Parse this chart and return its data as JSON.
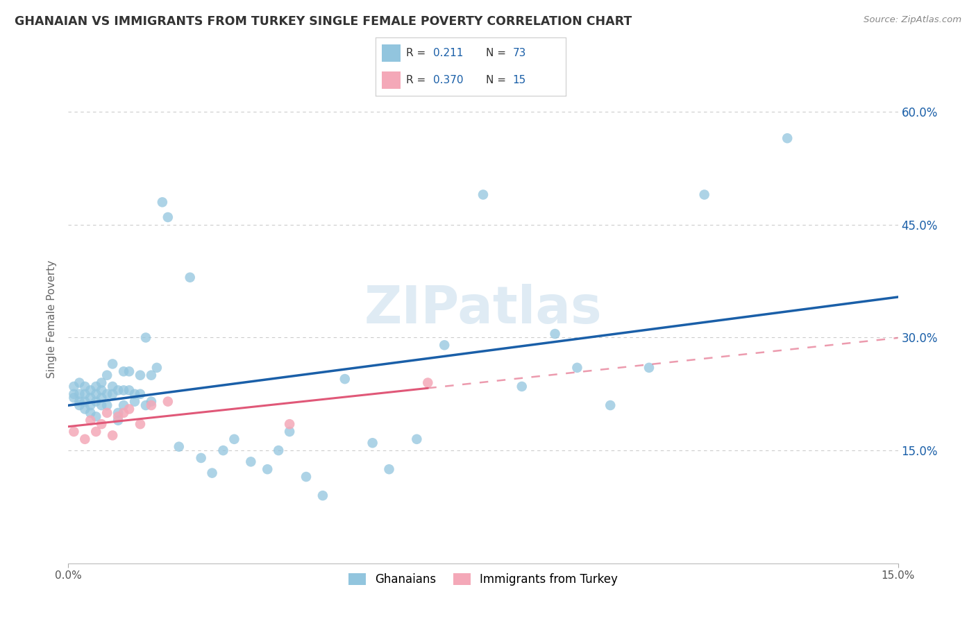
{
  "title": "GHANAIAN VS IMMIGRANTS FROM TURKEY SINGLE FEMALE POVERTY CORRELATION CHART",
  "source": "Source: ZipAtlas.com",
  "ylabel": "Single Female Poverty",
  "watermark": "ZIPatlas",
  "xlim": [
    0.0,
    0.15
  ],
  "ylim": [
    0.0,
    0.65
  ],
  "ytick_positions": [
    0.15,
    0.3,
    0.45,
    0.6
  ],
  "ytick_labels": [
    "15.0%",
    "30.0%",
    "45.0%",
    "60.0%"
  ],
  "blue_color": "#92c5de",
  "pink_color": "#f4a8b8",
  "line_blue": "#1a5fa8",
  "line_pink": "#e05878",
  "background_color": "#ffffff",
  "grid_color": "#cccccc",
  "title_color": "#333333",
  "value_color": "#1a5fa8",
  "ghanaian_x": [
    0.001,
    0.001,
    0.001,
    0.002,
    0.002,
    0.002,
    0.002,
    0.003,
    0.003,
    0.003,
    0.003,
    0.004,
    0.004,
    0.004,
    0.004,
    0.005,
    0.005,
    0.005,
    0.005,
    0.006,
    0.006,
    0.006,
    0.006,
    0.007,
    0.007,
    0.007,
    0.008,
    0.008,
    0.008,
    0.009,
    0.009,
    0.009,
    0.01,
    0.01,
    0.01,
    0.011,
    0.011,
    0.012,
    0.012,
    0.013,
    0.013,
    0.014,
    0.014,
    0.015,
    0.015,
    0.016,
    0.017,
    0.018,
    0.02,
    0.022,
    0.024,
    0.026,
    0.028,
    0.03,
    0.033,
    0.036,
    0.038,
    0.04,
    0.043,
    0.046,
    0.05,
    0.055,
    0.058,
    0.063,
    0.068,
    0.075,
    0.082,
    0.088,
    0.092,
    0.098,
    0.105,
    0.115,
    0.13
  ],
  "ghanaian_y": [
    0.225,
    0.235,
    0.22,
    0.24,
    0.225,
    0.215,
    0.21,
    0.235,
    0.225,
    0.215,
    0.205,
    0.23,
    0.22,
    0.21,
    0.2,
    0.235,
    0.225,
    0.215,
    0.195,
    0.23,
    0.22,
    0.21,
    0.24,
    0.25,
    0.225,
    0.21,
    0.265,
    0.235,
    0.225,
    0.23,
    0.2,
    0.19,
    0.255,
    0.23,
    0.21,
    0.255,
    0.23,
    0.225,
    0.215,
    0.25,
    0.225,
    0.3,
    0.21,
    0.215,
    0.25,
    0.26,
    0.48,
    0.46,
    0.155,
    0.38,
    0.14,
    0.12,
    0.15,
    0.165,
    0.135,
    0.125,
    0.15,
    0.175,
    0.115,
    0.09,
    0.245,
    0.16,
    0.125,
    0.165,
    0.29,
    0.49,
    0.235,
    0.305,
    0.26,
    0.21,
    0.26,
    0.49,
    0.565
  ],
  "turkey_x": [
    0.001,
    0.003,
    0.004,
    0.005,
    0.006,
    0.007,
    0.008,
    0.009,
    0.01,
    0.011,
    0.013,
    0.015,
    0.018,
    0.04,
    0.065
  ],
  "turkey_y": [
    0.175,
    0.165,
    0.19,
    0.175,
    0.185,
    0.2,
    0.17,
    0.195,
    0.2,
    0.205,
    0.185,
    0.21,
    0.215,
    0.185,
    0.24
  ]
}
